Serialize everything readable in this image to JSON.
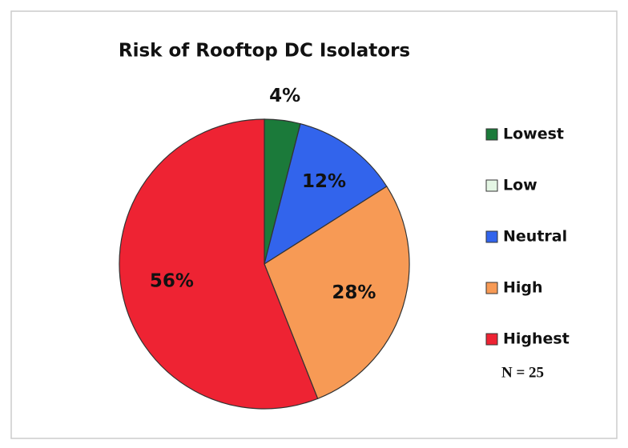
{
  "chart_data": {
    "type": "pie",
    "title": "Risk of Rooftop DC Isolators",
    "categories": [
      "Lowest",
      "Low",
      "Neutral",
      "High",
      "Highest"
    ],
    "values": [
      4,
      0,
      12,
      28,
      56
    ],
    "value_labels": [
      "4%",
      null,
      "12%",
      "28%",
      "56%"
    ],
    "colors": [
      "#1b7a3a",
      "#e4f6e4",
      "#3264ec",
      "#f79a55",
      "#ee2333"
    ],
    "annotation": "N = 25",
    "legend": "right"
  }
}
